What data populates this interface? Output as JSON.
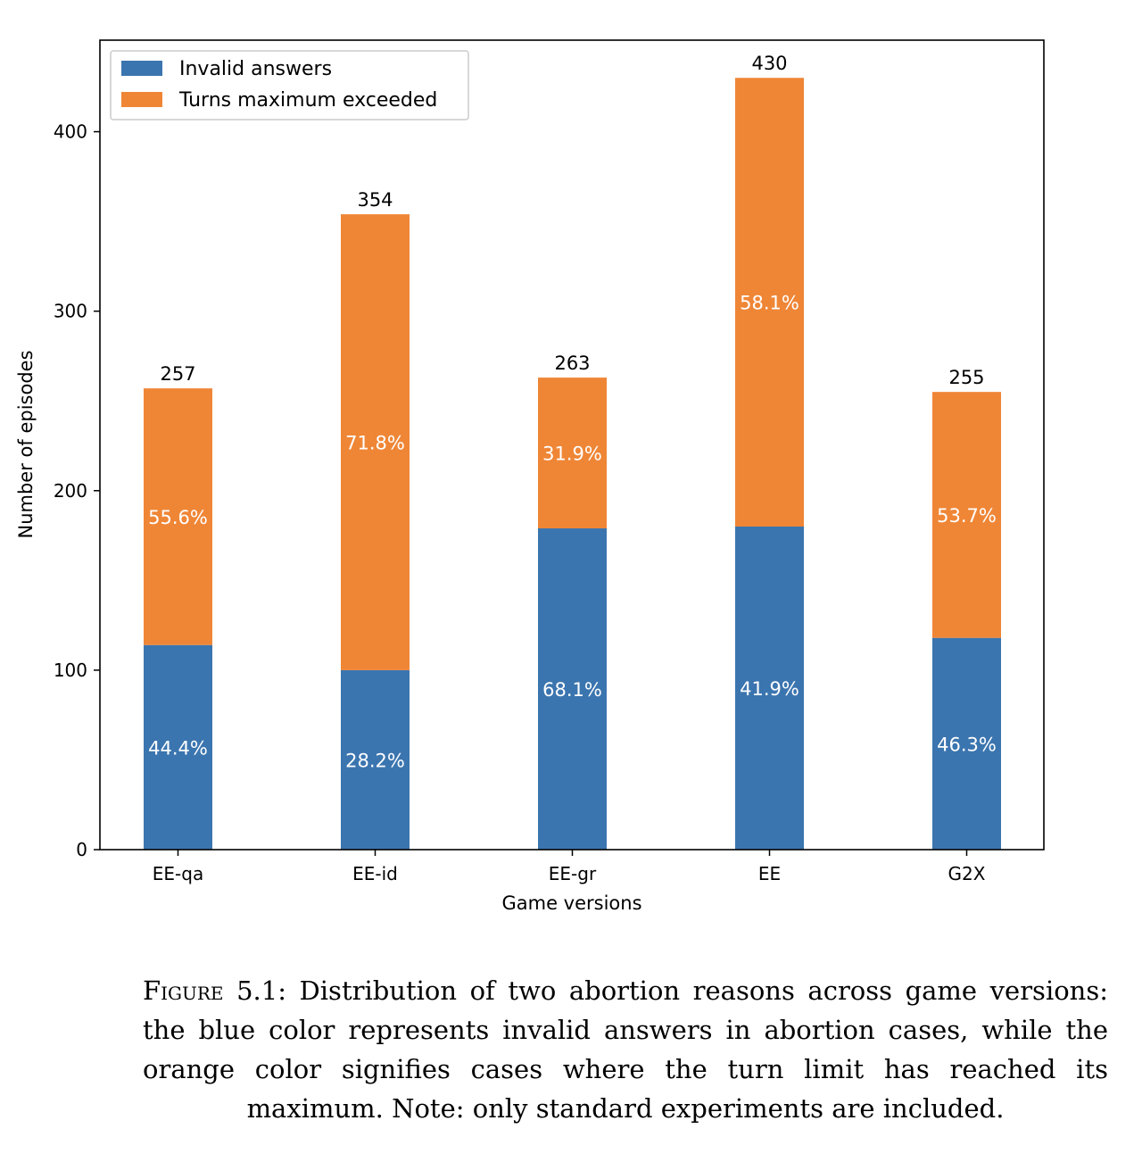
{
  "chart_data": {
    "type": "bar",
    "stacked": true,
    "categories": [
      "EE-qa",
      "EE-id",
      "EE-gr",
      "EE",
      "G2X"
    ],
    "series": [
      {
        "name": "Invalid answers",
        "color": "#3b75af",
        "values": [
          114,
          100,
          179,
          180,
          118
        ],
        "percent_labels": [
          "44.4%",
          "28.2%",
          "68.1%",
          "41.9%",
          "46.3%"
        ]
      },
      {
        "name": "Turns maximum exceeded",
        "color": "#ef8636",
        "values": [
          143,
          254,
          84,
          250,
          137
        ],
        "percent_labels": [
          "55.6%",
          "71.8%",
          "31.9%",
          "58.1%",
          "53.7%"
        ]
      }
    ],
    "totals": [
      "257",
      "354",
      "263",
      "430",
      "255"
    ],
    "xlabel": "Game versions",
    "ylabel": "Number of episodes",
    "ylim": [
      0,
      451
    ],
    "yticks": [
      0,
      100,
      200,
      300,
      400
    ],
    "grid": false,
    "legend_position": "upper-left"
  },
  "caption": {
    "label": "Figure 5.1:",
    "text": "Distribution of two abortion reasons across game versions: the blue color represents invalid answers in abortion cases, while the orange color signifies cases where the turn limit has reached its maximum. Note: only standard experiments are included."
  }
}
